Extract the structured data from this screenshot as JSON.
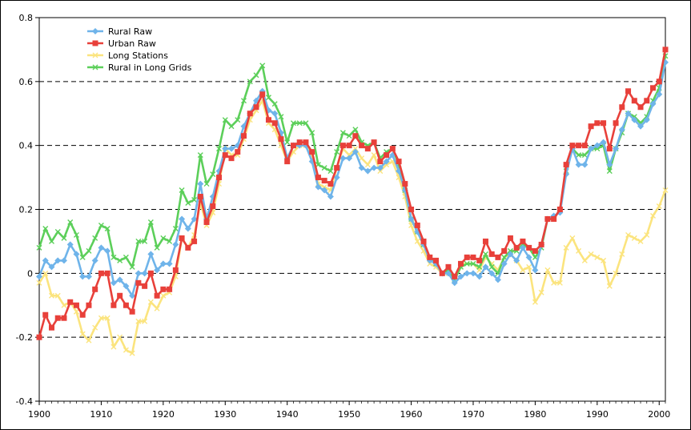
{
  "chart_data": {
    "type": "line",
    "title": "",
    "xlabel": "",
    "ylabel": "",
    "xlim": [
      1900,
      2001
    ],
    "ylim": [
      -0.4,
      0.8
    ],
    "grid": "horizontal-dashed",
    "legend_position": "top-left",
    "x_ticks": [
      "1900",
      "1910",
      "1920",
      "1930",
      "1940",
      "1950",
      "1960",
      "1970",
      "1980",
      "1990",
      "2000"
    ],
    "y_ticks": [
      "-0.4",
      "-0.2",
      "0",
      "0.2",
      "0.4",
      "0.6",
      "0.8"
    ],
    "x": [
      1900,
      1901,
      1902,
      1903,
      1904,
      1905,
      1906,
      1907,
      1908,
      1909,
      1910,
      1911,
      1912,
      1913,
      1914,
      1915,
      1916,
      1917,
      1918,
      1919,
      1920,
      1921,
      1922,
      1923,
      1924,
      1925,
      1926,
      1927,
      1928,
      1929,
      1930,
      1931,
      1932,
      1933,
      1934,
      1935,
      1936,
      1937,
      1938,
      1939,
      1940,
      1941,
      1942,
      1943,
      1944,
      1945,
      1946,
      1947,
      1948,
      1949,
      1950,
      1951,
      1952,
      1953,
      1954,
      1955,
      1956,
      1957,
      1958,
      1959,
      1960,
      1961,
      1962,
      1963,
      1964,
      1965,
      1966,
      1967,
      1968,
      1969,
      1970,
      1971,
      1972,
      1973,
      1974,
      1975,
      1976,
      1977,
      1978,
      1979,
      1980,
      1981,
      1982,
      1983,
      1984,
      1985,
      1986,
      1987,
      1988,
      1989,
      1990,
      1991,
      1992,
      1993,
      1994,
      1995,
      1996,
      1997,
      1998,
      1999,
      2000,
      2001
    ],
    "series": [
      {
        "name": "Rural Raw",
        "color": "#6fb4ea",
        "marker": "diamond",
        "values": [
          -0.01,
          0.04,
          0.02,
          0.04,
          0.04,
          0.09,
          0.06,
          -0.01,
          -0.01,
          0.04,
          0.08,
          0.07,
          -0.03,
          -0.02,
          -0.04,
          -0.07,
          0.0,
          0.0,
          0.06,
          0.01,
          0.03,
          0.03,
          0.09,
          0.17,
          0.14,
          0.17,
          0.28,
          0.17,
          0.24,
          0.32,
          0.39,
          0.39,
          0.4,
          0.46,
          0.5,
          0.54,
          0.57,
          0.51,
          0.5,
          0.44,
          0.36,
          0.4,
          0.4,
          0.4,
          0.35,
          0.27,
          0.26,
          0.24,
          0.3,
          0.36,
          0.36,
          0.38,
          0.33,
          0.32,
          0.33,
          0.33,
          0.35,
          0.37,
          0.32,
          0.26,
          0.17,
          0.13,
          0.09,
          0.04,
          0.03,
          0.0,
          0.0,
          -0.03,
          -0.01,
          0.0,
          0.0,
          -0.01,
          0.02,
          0.0,
          -0.02,
          0.03,
          0.06,
          0.04,
          0.08,
          0.05,
          0.01,
          0.09,
          0.17,
          0.18,
          0.19,
          0.31,
          0.39,
          0.34,
          0.34,
          0.39,
          0.4,
          0.41,
          0.34,
          0.39,
          0.45,
          0.5,
          0.48,
          0.46,
          0.48,
          0.53,
          0.56,
          0.66
        ]
      },
      {
        "name": "Urban Raw",
        "color": "#e8403a",
        "marker": "square",
        "values": [
          -0.2,
          -0.13,
          -0.17,
          -0.14,
          -0.14,
          -0.09,
          -0.1,
          -0.13,
          -0.1,
          -0.05,
          0.0,
          0.0,
          -0.1,
          -0.07,
          -0.1,
          -0.12,
          -0.03,
          -0.04,
          0.0,
          -0.07,
          -0.05,
          -0.05,
          0.01,
          0.11,
          0.08,
          0.1,
          0.24,
          0.16,
          0.21,
          0.3,
          0.37,
          0.36,
          0.38,
          0.43,
          0.5,
          0.52,
          0.56,
          0.48,
          0.47,
          0.42,
          0.35,
          0.4,
          0.41,
          0.41,
          0.38,
          0.3,
          0.29,
          0.28,
          0.33,
          0.4,
          0.4,
          0.43,
          0.4,
          0.39,
          0.41,
          0.35,
          0.37,
          0.39,
          0.35,
          0.28,
          0.2,
          0.15,
          0.1,
          0.05,
          0.04,
          0.0,
          0.02,
          -0.01,
          0.03,
          0.05,
          0.05,
          0.04,
          0.1,
          0.06,
          0.05,
          0.07,
          0.11,
          0.08,
          0.1,
          0.08,
          0.07,
          0.09,
          0.17,
          0.17,
          0.2,
          0.34,
          0.4,
          0.4,
          0.4,
          0.46,
          0.47,
          0.47,
          0.39,
          0.47,
          0.52,
          0.57,
          0.54,
          0.52,
          0.54,
          0.58,
          0.6,
          0.7
        ]
      },
      {
        "name": "Long Stations",
        "color": "#fbe47e",
        "marker": "x",
        "values": [
          -0.03,
          0.0,
          -0.07,
          -0.07,
          -0.1,
          -0.09,
          -0.12,
          -0.19,
          -0.21,
          -0.17,
          -0.14,
          -0.14,
          -0.23,
          -0.2,
          -0.24,
          -0.25,
          -0.15,
          -0.15,
          -0.09,
          -0.11,
          -0.07,
          -0.06,
          -0.01,
          0.11,
          0.08,
          0.12,
          0.22,
          0.15,
          0.19,
          0.28,
          0.39,
          0.37,
          0.37,
          0.42,
          0.48,
          0.51,
          0.54,
          0.47,
          0.45,
          0.4,
          0.35,
          0.38,
          0.4,
          0.4,
          0.37,
          0.28,
          0.27,
          0.26,
          0.33,
          0.39,
          0.37,
          0.39,
          0.36,
          0.34,
          0.37,
          0.32,
          0.34,
          0.35,
          0.3,
          0.24,
          0.15,
          0.1,
          0.07,
          0.03,
          0.02,
          0.0,
          0.0,
          -0.01,
          0.03,
          0.03,
          0.03,
          0.01,
          0.05,
          0.03,
          0.01,
          0.05,
          0.06,
          0.04,
          0.01,
          0.02,
          -0.09,
          -0.06,
          0.01,
          -0.03,
          -0.03,
          0.08,
          0.11,
          0.07,
          0.04,
          0.06,
          0.05,
          0.04,
          -0.04,
          0.0,
          0.06,
          0.12,
          0.11,
          0.1,
          0.12,
          0.18,
          0.21,
          0.26
        ]
      },
      {
        "name": "Rural in Long Grids",
        "color": "#5ccf5a",
        "marker": "x",
        "values": [
          0.08,
          0.14,
          0.1,
          0.13,
          0.11,
          0.16,
          0.12,
          0.05,
          0.07,
          0.11,
          0.15,
          0.14,
          0.05,
          0.04,
          0.05,
          0.02,
          0.1,
          0.1,
          0.16,
          0.08,
          0.11,
          0.1,
          0.14,
          0.26,
          0.22,
          0.23,
          0.37,
          0.28,
          0.31,
          0.39,
          0.48,
          0.46,
          0.48,
          0.54,
          0.6,
          0.62,
          0.65,
          0.55,
          0.53,
          0.49,
          0.41,
          0.47,
          0.47,
          0.47,
          0.44,
          0.34,
          0.33,
          0.32,
          0.38,
          0.44,
          0.43,
          0.45,
          0.41,
          0.4,
          0.41,
          0.36,
          0.38,
          0.39,
          0.34,
          0.26,
          0.17,
          0.13,
          0.09,
          0.05,
          0.03,
          0.0,
          0.01,
          -0.02,
          0.02,
          0.03,
          0.03,
          0.02,
          0.06,
          0.02,
          0.0,
          0.05,
          0.07,
          0.07,
          0.09,
          0.08,
          0.05,
          0.08,
          0.17,
          0.17,
          0.2,
          0.32,
          0.39,
          0.37,
          0.37,
          0.39,
          0.39,
          0.4,
          0.32,
          0.39,
          0.44,
          0.5,
          0.49,
          0.47,
          0.49,
          0.54,
          0.58,
          0.68
        ]
      }
    ]
  }
}
